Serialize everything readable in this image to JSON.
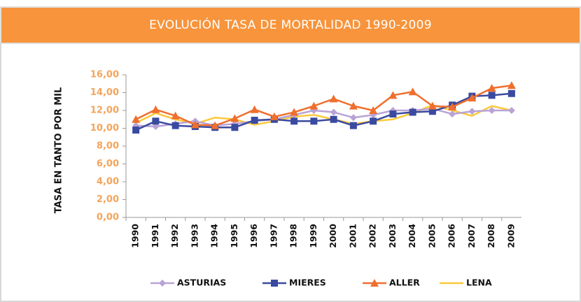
{
  "chart_data": {
    "type": "line",
    "title": "EVOLUCIÓN TASA DE MORTALIDAD 1990-2009",
    "y_label": "TASA EN TANTO POR MIL",
    "categories": [
      "1990",
      "1991",
      "1992",
      "1993",
      "1994",
      "1995",
      "1996",
      "1997",
      "1998",
      "1999",
      "2000",
      "2001",
      "2002",
      "2003",
      "2004",
      "2005",
      "2006",
      "2007",
      "2008",
      "2009"
    ],
    "series": [
      {
        "name": "ASTURIAS",
        "color": "#b9a3d6",
        "marker": "diamond",
        "values": [
          10.3,
          10.2,
          10.5,
          10.8,
          10.3,
          10.5,
          10.8,
          11.0,
          11.5,
          12.0,
          11.8,
          11.2,
          11.5,
          12.0,
          12.0,
          12.2,
          11.6,
          11.9,
          12.0,
          12.0
        ]
      },
      {
        "name": "MIERES",
        "color": "#3a4aa0",
        "marker": "square",
        "values": [
          9.8,
          10.8,
          10.3,
          10.2,
          10.1,
          10.1,
          10.9,
          11.0,
          10.8,
          10.8,
          11.0,
          10.3,
          10.8,
          11.6,
          11.8,
          11.9,
          12.6,
          13.6,
          13.7,
          13.9
        ]
      },
      {
        "name": "ALLER",
        "color": "#ef6f2e",
        "marker": "triangle",
        "values": [
          11.0,
          12.1,
          11.4,
          10.4,
          10.3,
          11.1,
          12.1,
          11.3,
          11.8,
          12.5,
          13.3,
          12.5,
          12.0,
          13.7,
          14.1,
          12.5,
          12.4,
          13.4,
          14.5,
          14.8
        ]
      },
      {
        "name": "LENA",
        "color": "#fbc93c",
        "marker": "none",
        "values": [
          10.6,
          11.7,
          11.0,
          10.5,
          11.2,
          11.0,
          10.4,
          10.8,
          11.3,
          11.5,
          11.0,
          10.5,
          10.8,
          11.0,
          11.7,
          12.6,
          12.0,
          11.4,
          12.5,
          12.0
        ]
      }
    ],
    "ylim": [
      0,
      16
    ],
    "yticks": [
      {
        "value": 0,
        "label": "0,00"
      },
      {
        "value": 2,
        "label": "2,00"
      },
      {
        "value": 4,
        "label": "4,00"
      },
      {
        "value": 6,
        "label": "6,00"
      },
      {
        "value": 8,
        "label": "8,00"
      },
      {
        "value": 10,
        "label": "10,00"
      },
      {
        "value": 12,
        "label": "12,00"
      },
      {
        "value": 14,
        "label": "14,00"
      },
      {
        "value": 16,
        "label": "16,00"
      }
    ],
    "grid": false,
    "legend": "bottom"
  }
}
